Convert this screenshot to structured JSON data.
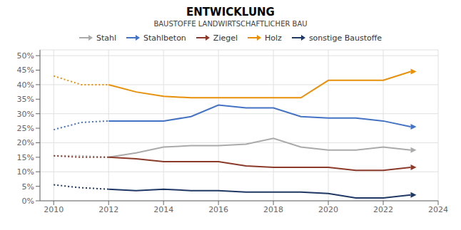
{
  "chart_data": {
    "type": "line",
    "title": "ENTWICKLUNG",
    "subtitle": "BAUSTOFFE LANDWIRTSCHAFTLICHER BAU",
    "x": [
      2010,
      2011,
      2012,
      2013,
      2014,
      2015,
      2016,
      2017,
      2018,
      2019,
      2020,
      2021,
      2022,
      2023
    ],
    "series": [
      {
        "color": "#aaaaaa",
        "line_style": "dotted",
        "values": [
          0.155,
          0.155,
          0.15,
          null,
          null,
          null,
          null,
          null,
          null,
          null,
          null,
          null,
          null,
          null
        ]
      },
      {
        "name": "Stahl",
        "color": "#aaaaaa",
        "line_style": "solid",
        "marker": "arrow",
        "values": [
          null,
          null,
          0.15,
          0.165,
          0.185,
          0.19,
          0.19,
          0.195,
          0.215,
          0.185,
          0.175,
          0.175,
          0.185,
          0.175
        ]
      },
      {
        "color": "#4472c4",
        "line_style": "dotted",
        "values": [
          0.245,
          0.27,
          0.275,
          null,
          null,
          null,
          null,
          null,
          null,
          null,
          null,
          null,
          null,
          null
        ]
      },
      {
        "name": "Stahlbeton",
        "color": "#4472c4",
        "line_style": "solid",
        "marker": "arrow",
        "values": [
          null,
          null,
          0.275,
          0.275,
          0.275,
          0.29,
          0.33,
          0.32,
          0.32,
          0.29,
          0.285,
          0.285,
          0.275,
          0.255
        ]
      },
      {
        "color": "#8b3a2a",
        "line_style": "dotted",
        "values": [
          0.155,
          0.15,
          0.15,
          null,
          null,
          null,
          null,
          null,
          null,
          null,
          null,
          null,
          null,
          null
        ]
      },
      {
        "name": "Ziegel",
        "color": "#8b3a2a",
        "line_style": "solid",
        "marker": "arrow",
        "values": [
          null,
          null,
          0.15,
          0.145,
          0.135,
          0.135,
          0.135,
          0.12,
          0.115,
          0.115,
          0.115,
          0.105,
          0.105,
          0.115
        ]
      },
      {
        "color": "#e8900a",
        "line_style": "dotted",
        "values": [
          0.43,
          0.4,
          0.4,
          null,
          null,
          null,
          null,
          null,
          null,
          null,
          null,
          null,
          null,
          null
        ]
      },
      {
        "name": "Holz",
        "color": "#e8900a",
        "line_style": "solid",
        "marker": "arrow",
        "values": [
          null,
          null,
          0.4,
          0.375,
          0.36,
          0.355,
          0.355,
          0.355,
          0.355,
          0.355,
          0.415,
          0.415,
          0.415,
          0.445
        ]
      },
      {
        "color": "#1f3864",
        "line_style": "dotted",
        "values": [
          0.055,
          0.045,
          0.04,
          null,
          null,
          null,
          null,
          null,
          null,
          null,
          null,
          null,
          null,
          null
        ]
      },
      {
        "name": "sonstige Baustoffe",
        "color": "#1f3864",
        "line_style": "solid",
        "marker": "arrow",
        "values": [
          null,
          null,
          0.04,
          0.035,
          0.04,
          0.035,
          0.035,
          0.03,
          0.03,
          0.03,
          0.025,
          0.01,
          0.01,
          0.02
        ]
      }
    ],
    "xlim": [
      2009.5,
      2024.0
    ],
    "xticks": [
      2010,
      2012,
      2014,
      2016,
      2018,
      2020,
      2022,
      2024
    ],
    "ylim": [
      0.0,
      0.52
    ],
    "yticks": [
      {
        "value": 0.0,
        "label": "0%"
      },
      {
        "value": 0.05,
        "label": "5%"
      },
      {
        "value": 0.1,
        "label": "10%"
      },
      {
        "value": 0.15,
        "label": "15%"
      },
      {
        "value": 0.2,
        "label": "20%"
      },
      {
        "value": 0.25,
        "label": "25%"
      },
      {
        "value": 0.3,
        "label": "30%"
      },
      {
        "value": 0.35,
        "label": "35%"
      },
      {
        "value": 0.4,
        "label": "40%"
      },
      {
        "value": 0.45,
        "label": "45%"
      },
      {
        "value": 0.5,
        "label": "50%"
      }
    ],
    "grid": true,
    "legend": "top"
  }
}
